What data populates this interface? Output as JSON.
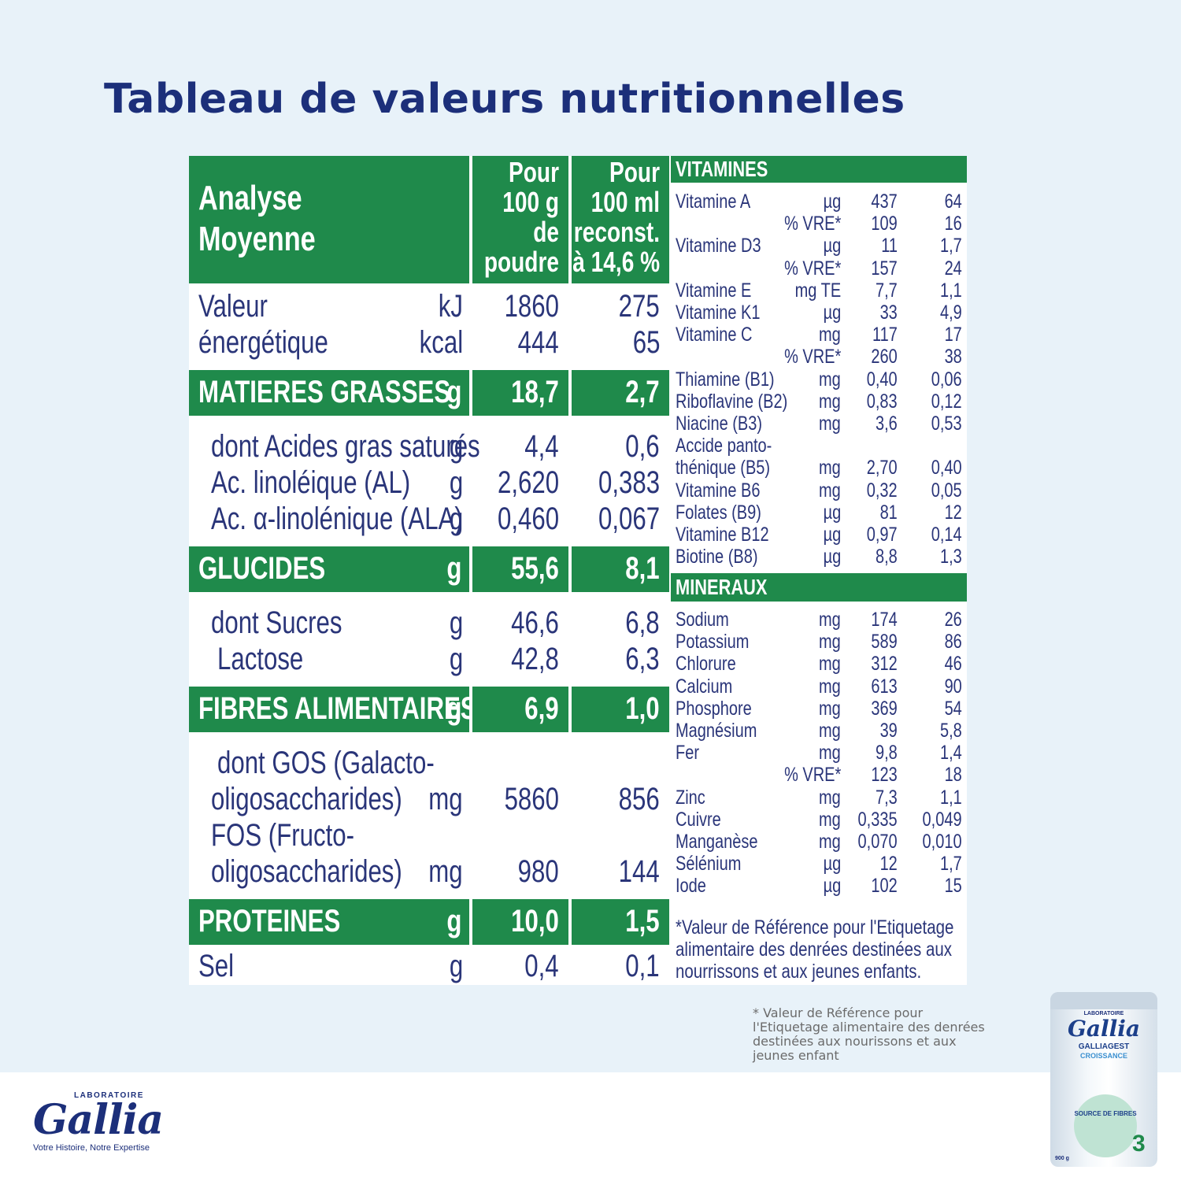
{
  "title": "Tableau de valeurs nutritionnelles",
  "table": {
    "header": {
      "label_lines": [
        "Analyse",
        "Moyenne"
      ],
      "col1_lines": [
        "Pour",
        "100 g",
        "de",
        "poudre"
      ],
      "col2_lines": [
        "Pour",
        "100 ml",
        "reconst.",
        "à 14,6 %"
      ]
    },
    "energy": {
      "label_lines": [
        "Valeur",
        "énergétique"
      ],
      "unit_lines": [
        "kJ",
        "kcal"
      ],
      "col1_lines": [
        "1860",
        "444"
      ],
      "col2_lines": [
        "275",
        "65"
      ]
    },
    "fat": {
      "label": "MATIERES GRASSES",
      "unit": "g",
      "v1": "18,7",
      "v2": "2,7",
      "rows": [
        {
          "label": "dont Acides gras saturés",
          "unit": "g",
          "v1": "4,4",
          "v2": "0,6"
        },
        {
          "label": "Ac. linoléique (AL)",
          "unit": "g",
          "v1": "2,620",
          "v2": "0,383"
        },
        {
          "label": "Ac. α-linolénique (ALA)",
          "unit": "g",
          "v1": "0,460",
          "v2": "0,067"
        }
      ]
    },
    "carbs": {
      "label": "GLUCIDES",
      "unit": "g",
      "v1": "55,6",
      "v2": "8,1",
      "rows": [
        {
          "label": "dont Sucres",
          "unit": "g",
          "v1": "46,6",
          "v2": "6,8"
        },
        {
          "label": "Lactose",
          "unit": "g",
          "v1": "42,8",
          "v2": "6,3"
        }
      ]
    },
    "fibres": {
      "label": "FIBRES ALIMENTAIRES",
      "unit": "g",
      "v1": "6,9",
      "v2": "1,0",
      "gos_line1": "dont GOS (Galacto-",
      "gos_line2": "oligosaccharides)",
      "gos_unit": "mg",
      "gos_v1": "5860",
      "gos_v2": "856",
      "fos_line1": "FOS (Fructo-",
      "fos_line2": "oligosaccharides)",
      "fos_unit": "mg",
      "fos_v1": "980",
      "fos_v2": "144"
    },
    "proteins": {
      "label": "PROTEINES",
      "unit": "g",
      "v1": "10,0",
      "v2": "1,5"
    },
    "salt": {
      "label": "Sel",
      "unit": "g",
      "v1": "0,4",
      "v2": "0,1"
    }
  },
  "vitamins": {
    "heading": "VITAMINES",
    "rows": [
      {
        "name": "Vitamine A",
        "unit": "µg",
        "v1": "437",
        "v2": "64"
      },
      {
        "name": "",
        "unit": "% VRE*",
        "v1": "109",
        "v2": "16"
      },
      {
        "name": "Vitamine D3",
        "unit": "µg",
        "v1": "11",
        "v2": "1,7"
      },
      {
        "name": "",
        "unit": "% VRE*",
        "v1": "157",
        "v2": "24"
      },
      {
        "name": "Vitamine E",
        "unit": "mg TE",
        "v1": "7,7",
        "v2": "1,1"
      },
      {
        "name": "Vitamine K1",
        "unit": "µg",
        "v1": "33",
        "v2": "4,9"
      },
      {
        "name": "Vitamine C",
        "unit": "mg",
        "v1": "117",
        "v2": "17"
      },
      {
        "name": "",
        "unit": "% VRE*",
        "v1": "260",
        "v2": "38"
      },
      {
        "name": "Thiamine (B1)",
        "unit": "mg",
        "v1": "0,40",
        "v2": "0,06"
      },
      {
        "name": "Riboflavine (B2)",
        "unit": "mg",
        "v1": "0,83",
        "v2": "0,12"
      },
      {
        "name": "Niacine (B3)",
        "unit": "mg",
        "v1": "3,6",
        "v2": "0,53"
      },
      {
        "name": "Accide panto-",
        "unit": "",
        "v1": "",
        "v2": ""
      },
      {
        "name": "thénique (B5)",
        "unit": "mg",
        "v1": "2,70",
        "v2": "0,40"
      },
      {
        "name": "Vitamine B6",
        "unit": "mg",
        "v1": "0,32",
        "v2": "0,05"
      },
      {
        "name": "Folates (B9)",
        "unit": "µg",
        "v1": "81",
        "v2": "12"
      },
      {
        "name": "Vitamine B12",
        "unit": "µg",
        "v1": "0,97",
        "v2": "0,14"
      },
      {
        "name": "Biotine (B8)",
        "unit": "µg",
        "v1": "8,8",
        "v2": "1,3"
      }
    ]
  },
  "minerals": {
    "heading": "MINERAUX",
    "rows": [
      {
        "name": "Sodium",
        "unit": "mg",
        "v1": "174",
        "v2": "26"
      },
      {
        "name": "Potassium",
        "unit": "mg",
        "v1": "589",
        "v2": "86"
      },
      {
        "name": "Chlorure",
        "unit": "mg",
        "v1": "312",
        "v2": "46"
      },
      {
        "name": "Calcium",
        "unit": "mg",
        "v1": "613",
        "v2": "90"
      },
      {
        "name": "Phosphore",
        "unit": "mg",
        "v1": "369",
        "v2": "54"
      },
      {
        "name": "Magnésium",
        "unit": "mg",
        "v1": "39",
        "v2": "5,8"
      },
      {
        "name": "Fer",
        "unit": "mg",
        "v1": "9,8",
        "v2": "1,4"
      },
      {
        "name": "",
        "unit": "% VRE*",
        "v1": "123",
        "v2": "18"
      },
      {
        "name": "Zinc",
        "unit": "mg",
        "v1": "7,3",
        "v2": "1,1"
      },
      {
        "name": "Cuivre",
        "unit": "mg",
        "v1": "0,335",
        "v2": "0,049"
      },
      {
        "name": "Manganèse",
        "unit": "mg",
        "v1": "0,070",
        "v2": "0,010"
      },
      {
        "name": "Sélénium",
        "unit": "µg",
        "v1": "12",
        "v2": "1,7"
      },
      {
        "name": "Iode",
        "unit": "µg",
        "v1": "102",
        "v2": "15"
      }
    ]
  },
  "note_inner": [
    "*Valeur de Référence pour l'Etiquetage",
    "alimentaire des denrées destinées aux",
    "nourrissons et aux jeunes enfants."
  ],
  "note_outer": [
    "* Valeur de Référence pour",
    "l'Etiquetage alimentaire des denrées",
    "destinées aux nourissons et aux",
    "jeunes enfant"
  ],
  "logo": {
    "lab": "LABORATOIRE",
    "brand": "Gallia",
    "tagline": "Votre Histoire, Notre Expertise"
  },
  "product": {
    "lab": "LABORATOIRE",
    "brand": "Gallia",
    "name": "GALLIAGEST",
    "sub": "CROISSANCE",
    "badge": "SOURCE DE FIBRES",
    "stage": "3",
    "weight": "900 g"
  },
  "colors": {
    "green": "#1f8a4b",
    "navy": "#1c2f7a",
    "background": "#e8f2f9"
  }
}
